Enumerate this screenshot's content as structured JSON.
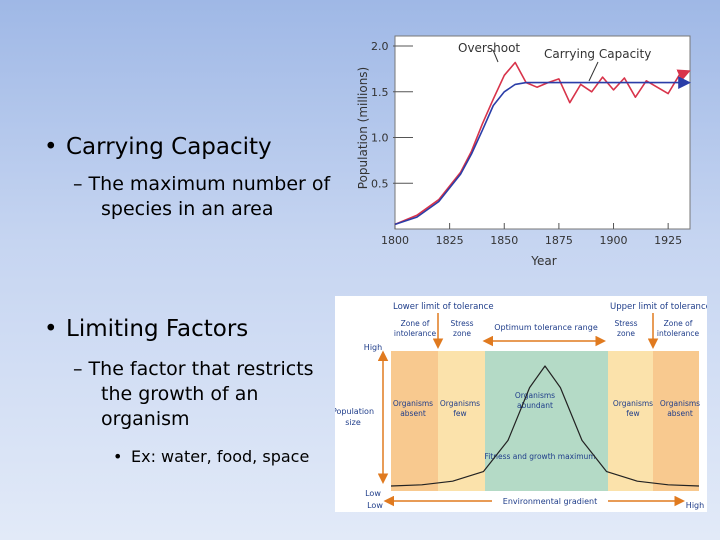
{
  "bullets": {
    "b1": "Carrying Capacity",
    "b1_sub": [
      "– The maximum number of",
      "species in an area"
    ],
    "b2": "Limiting Factors",
    "b2_sub": [
      "– The factor that restricts",
      "the growth of an",
      "organism"
    ],
    "b2_sub2": "Ex: water, food, space",
    "glyph_bullet": "•",
    "glyph_bullet_small": "•"
  },
  "chart_data": [
    {
      "type": "line",
      "title": "",
      "ylabel": "Population (millions)",
      "xlabel": "Year",
      "xlim": [
        1800,
        1935
      ],
      "ylim": [
        0,
        2.0
      ],
      "x_ticks": [
        "1800",
        "1825",
        "1850",
        "1875",
        "1900",
        "1925"
      ],
      "y_ticks": [
        "2.0",
        "1.5",
        "1.0",
        "0.5"
      ],
      "annotations": [
        "Overshoot",
        "Carrying Capacity"
      ],
      "series": [
        {
          "color": "#d8334a",
          "x": [
            1800,
            1810,
            1820,
            1830,
            1835,
            1840,
            1845,
            1850,
            1855,
            1860,
            1865,
            1870,
            1875,
            1880,
            1885,
            1890,
            1895,
            1900,
            1905,
            1910,
            1915,
            1920,
            1925,
            1930,
            1934
          ],
          "y": [
            0.05,
            0.15,
            0.32,
            0.62,
            0.85,
            1.15,
            1.42,
            1.68,
            1.82,
            1.6,
            1.55,
            1.6,
            1.64,
            1.38,
            1.58,
            1.5,
            1.66,
            1.52,
            1.65,
            1.44,
            1.62,
            1.55,
            1.48,
            1.68,
            1.72
          ]
        },
        {
          "color": "#2b3ea8",
          "x": [
            1800,
            1810,
            1820,
            1830,
            1835,
            1840,
            1845,
            1850,
            1855,
            1860,
            1870,
            1880,
            1890,
            1900,
            1910,
            1920,
            1934
          ],
          "y": [
            0.05,
            0.13,
            0.3,
            0.6,
            0.82,
            1.08,
            1.35,
            1.5,
            1.58,
            1.6,
            1.6,
            1.6,
            1.6,
            1.6,
            1.6,
            1.6,
            1.6
          ]
        }
      ]
    },
    {
      "type": "area",
      "title": "",
      "labels": {
        "lower_limit": "Lower limit of tolerance",
        "upper_limit": "Upper limit of tolerance",
        "zone_intol_left": [
          "Zone of",
          "intolerance"
        ],
        "stress_left": [
          "Stress",
          "zone"
        ],
        "optimum": "Optimum tolerance range",
        "stress_right": [
          "Stress",
          "zone"
        ],
        "zone_intol_right": [
          "Zone of",
          "intolerance"
        ],
        "high_y": "High",
        "low_y": "Low",
        "pop_size": [
          "Population",
          "size"
        ],
        "absent_left": [
          "Organisms",
          "absent"
        ],
        "few_left": [
          "Organisms",
          "few"
        ],
        "abundant": [
          "Organisms",
          "abundant"
        ],
        "few_right": [
          "Organisms",
          "few"
        ],
        "absent_right": [
          "Organisms",
          "absent"
        ],
        "fitness": "Fitness and growth maximum",
        "env_gradient": "Environmental gradient",
        "low_x": "Low",
        "high_x": "High"
      },
      "zones": [
        {
          "name": "intolerance-left",
          "color": "#f8c98f"
        },
        {
          "name": "stress-left",
          "color": "#fbe2ab"
        },
        {
          "name": "optimum",
          "color": "#b4dac6"
        },
        {
          "name": "stress-right",
          "color": "#fbe2ab"
        },
        {
          "name": "intolerance-right",
          "color": "#f8c98f"
        }
      ],
      "curve": {
        "x": [
          0,
          0.1,
          0.2,
          0.3,
          0.38,
          0.45,
          0.5,
          0.55,
          0.62,
          0.7,
          0.8,
          0.9,
          1.0
        ],
        "y": [
          0,
          0.01,
          0.04,
          0.12,
          0.38,
          0.82,
          1.0,
          0.82,
          0.38,
          0.12,
          0.04,
          0.01,
          0
        ]
      },
      "arrow_color": "#e07a1f"
    }
  ]
}
